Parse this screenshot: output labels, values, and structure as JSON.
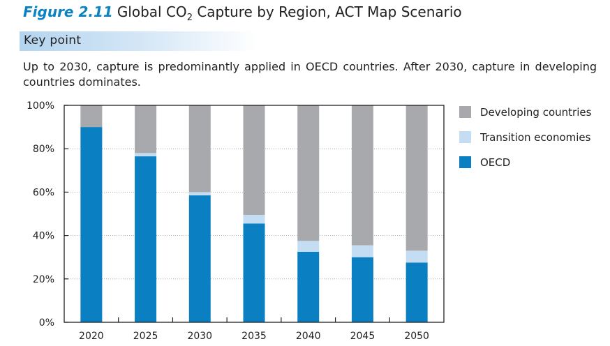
{
  "figure": {
    "number": "Figure 2.11",
    "title_pre": "Global CO",
    "title_sub": "2",
    "title_post": " Capture by Region, ACT Map Scenario"
  },
  "key_point": {
    "label": "Key point",
    "text": "Up to 2030, capture is predominantly applied in OECD countries. After 2030, capture in developing countries dominates."
  },
  "colors": {
    "oecd": "#0a7fc2",
    "transition": "#c5ddf2",
    "developing": "#a7a9ac"
  },
  "chart_data": {
    "type": "bar",
    "stacked": true,
    "percent": true,
    "title": "Global CO2 Capture by Region, ACT Map Scenario",
    "xlabel": "",
    "ylabel": "",
    "ylim": [
      0,
      100
    ],
    "grid": true,
    "legend_position": "right",
    "categories": [
      "2020",
      "2025",
      "2030",
      "2035",
      "2040",
      "2045",
      "2050"
    ],
    "y_ticks": [
      "0%",
      "20%",
      "40%",
      "60%",
      "80%",
      "100%"
    ],
    "series": [
      {
        "name": "OECD",
        "values": [
          90,
          76.5,
          58.5,
          45.5,
          32.5,
          30,
          27.5
        ]
      },
      {
        "name": "Transition economies",
        "values": [
          0,
          1.5,
          1.5,
          4,
          5,
          5.5,
          5.5
        ]
      },
      {
        "name": "Developing countries",
        "values": [
          10,
          22,
          40,
          50.5,
          62.5,
          64.5,
          67
        ]
      }
    ],
    "legend": [
      "Developing countries",
      "Transition economies",
      "OECD"
    ]
  }
}
